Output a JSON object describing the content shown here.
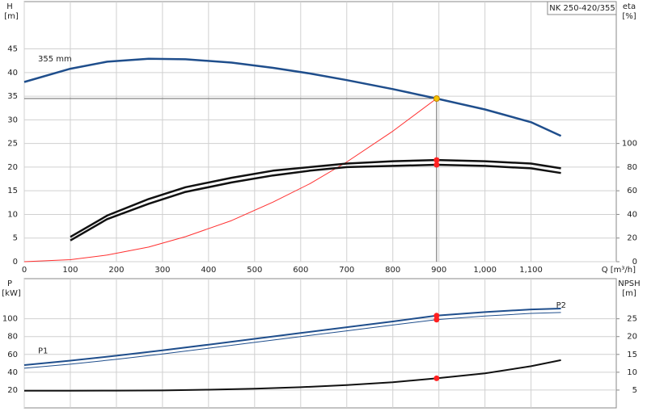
{
  "chart_data": [
    {
      "type": "line",
      "title": "NK 250-420/355",
      "ylabel": "H",
      "yunit": "[m]",
      "y2label": "eta",
      "y2unit": "[%]",
      "xlabel": "Q [m³/h]",
      "xlim": [
        0,
        1285
      ],
      "ylim": [
        0,
        55
      ],
      "y2lim": [
        0,
        220
      ],
      "xticks": [
        0,
        100,
        200,
        300,
        400,
        500,
        600,
        700,
        800,
        900,
        {
          "value": 1000,
          "label": "1,000"
        },
        {
          "value": 1100,
          "label": "1,100"
        }
      ],
      "yticks": [
        0,
        5,
        10,
        15,
        20,
        25,
        30,
        35,
        40,
        45
      ],
      "y2ticks": [
        0,
        20,
        40,
        60,
        80,
        100
      ],
      "grid": true,
      "highlight_x": 895,
      "guide_lines": true,
      "x": [
        0,
        100,
        180,
        270,
        350,
        450,
        540,
        620,
        700,
        800,
        895,
        1000,
        1100,
        1165
      ],
      "series": [
        {
          "name": "355 mm",
          "color": "#1f4e8c",
          "width": 2.5,
          "marker_color": "#f5c400",
          "values": [
            38,
            40.8,
            42.3,
            42.9,
            42.8,
            42.1,
            41,
            39.8,
            38.4,
            36.5,
            34.5,
            32.2,
            29.5,
            26.6
          ]
        },
        {
          "color": "#ff3030",
          "width": 1,
          "values": [
            0,
            0.43,
            1.4,
            3.1,
            5.3,
            8.7,
            12.6,
            16.5,
            21.1,
            27.6,
            34.5,
            null,
            null,
            null
          ]
        },
        {
          "color": "#111111",
          "width": 2.5,
          "axis": "y2",
          "marker_color": "#ff2020",
          "values": [
            null,
            21,
            39,
            53,
            63,
            71,
            77,
            80,
            83,
            85,
            86,
            85,
            83,
            79
          ]
        },
        {
          "color": "#111111",
          "width": 2.5,
          "axis": "y2",
          "marker_color": "#ff2020",
          "values": [
            null,
            18,
            36,
            49,
            59,
            67,
            73,
            77,
            80,
            81,
            82,
            81,
            79,
            75
          ]
        }
      ]
    },
    {
      "type": "line",
      "ylabel": "P",
      "yunit": "[kW]",
      "y2label": "NPSH",
      "y2unit": "[m]",
      "xlim": [
        0,
        1285
      ],
      "ylim": [
        0,
        145
      ],
      "y2lim": [
        0,
        36.25
      ],
      "xticks": [
        0,
        100,
        200,
        300,
        400,
        500,
        600,
        700,
        800,
        900,
        1000,
        1100
      ],
      "xtick_labels": false,
      "yticks": [
        20,
        40,
        60,
        80,
        100
      ],
      "y2ticks": [
        5,
        10,
        15,
        20,
        25
      ],
      "grid": true,
      "highlight_x": 895,
      "x": [
        0,
        100,
        200,
        300,
        400,
        500,
        600,
        700,
        800,
        895,
        1000,
        1100,
        1165
      ],
      "series": [
        {
          "name": "P1",
          "color": "#1f4e8c",
          "width": 2,
          "marker_color": "#ff2020",
          "values": [
            48,
            53,
            58.5,
            64.5,
            71,
            77.5,
            84,
            90.5,
            97,
            103.5,
            107.5,
            110.5,
            111.5
          ]
        },
        {
          "name": "P2",
          "color": "#1f4e8c",
          "width": 1,
          "marker_color": "#ff2020",
          "values": [
            44.5,
            49,
            54.5,
            60.5,
            67,
            73.5,
            80,
            86.5,
            93,
            99,
            103,
            106,
            107
          ]
        },
        {
          "color": "#111111",
          "width": 2,
          "axis": "y2",
          "marker_color": "#ff2020",
          "values": [
            4.8,
            4.8,
            4.85,
            4.9,
            5.1,
            5.4,
            5.8,
            6.4,
            7.2,
            8.3,
            9.7,
            11.7,
            13.4
          ]
        }
      ]
    }
  ]
}
